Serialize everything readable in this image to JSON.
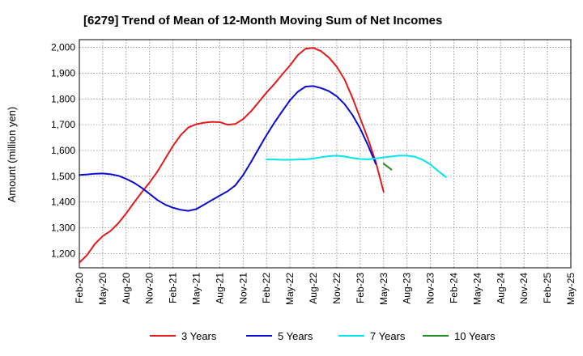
{
  "chart_data": {
    "type": "line",
    "title": "[6279]  Trend of Mean of 12-Month Moving Sum of Net Incomes",
    "xlabel": "",
    "ylabel": "Amount (million yen)",
    "x_tick_labels": [
      "Feb-20",
      "May-20",
      "Aug-20",
      "Nov-20",
      "Feb-21",
      "May-21",
      "Aug-21",
      "Nov-21",
      "Feb-22",
      "May-22",
      "Aug-22",
      "Nov-22",
      "Feb-23",
      "May-23",
      "Aug-23",
      "Nov-23",
      "Feb-24",
      "May-24",
      "Aug-24",
      "Nov-24",
      "Feb-25",
      "May-25"
    ],
    "y_ticks": [
      1200,
      1300,
      1400,
      1500,
      1600,
      1700,
      1800,
      1900,
      2000
    ],
    "y_tick_labels": [
      "1,200",
      "1,300",
      "1,400",
      "1,500",
      "1,600",
      "1,700",
      "1,800",
      "1,900",
      "2,000"
    ],
    "ylim": [
      1145,
      2030
    ],
    "grid": true,
    "legend_position": "bottom",
    "series": [
      {
        "name": "3 Years",
        "color": "#e31a1c",
        "values": [
          1165,
          1195,
          1238,
          1268,
          1288,
          1318,
          1356,
          1398,
          1438,
          1476,
          1518,
          1568,
          1618,
          1660,
          1690,
          1702,
          1708,
          1711,
          1710,
          1700,
          1703,
          1722,
          1752,
          1788,
          1825,
          1858,
          1895,
          1930,
          1970,
          1995,
          1998,
          1985,
          1960,
          1925,
          1875,
          1805,
          1725,
          1645,
          1555,
          1440
        ]
      },
      {
        "name": "5 Years",
        "color": "#0a0ad0",
        "values": [
          1505,
          1507,
          1510,
          1511,
          1508,
          1502,
          1490,
          1475,
          1455,
          1432,
          1408,
          1390,
          1378,
          1370,
          1366,
          1373,
          1390,
          1408,
          1425,
          1442,
          1465,
          1505,
          1555,
          1608,
          1660,
          1708,
          1752,
          1795,
          1828,
          1848,
          1850,
          1842,
          1830,
          1810,
          1780,
          1738,
          1685,
          1620,
          1548
        ]
      },
      {
        "name": "7 Years",
        "color": "#00e5ee",
        "values": [
          1565,
          1565,
          1564,
          1564,
          1565,
          1566,
          1569,
          1574,
          1578,
          1580,
          1577,
          1571,
          1567,
          1566,
          1569,
          1573,
          1577,
          1580,
          1580,
          1576,
          1564,
          1546,
          1520,
          1497
        ]
      },
      {
        "name": "10 Years",
        "color": "#228b22",
        "values": [
          1549,
          1526
        ]
      }
    ]
  }
}
